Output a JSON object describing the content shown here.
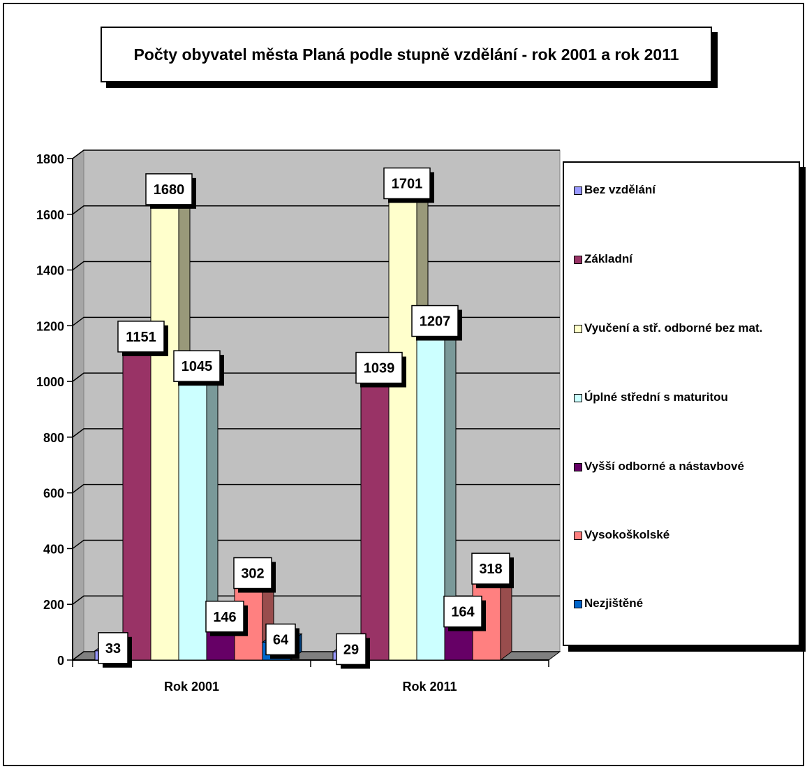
{
  "chart_data": {
    "type": "bar",
    "title": "Počty obyvatel města Planá podle stupně vzdělání - rok 2001 a rok 2011",
    "categories": [
      "Rok 2001",
      "Rok 2011"
    ],
    "ylim": [
      0,
      1800
    ],
    "yticks": [
      "0",
      "200",
      "400",
      "600",
      "800",
      "1000",
      "1200",
      "1400",
      "1600",
      "1800"
    ],
    "grid": true,
    "legend_position": "right",
    "series": [
      {
        "name": "Bez vzdělání",
        "color": "#9999ff",
        "values": [
          33,
          29
        ]
      },
      {
        "name": "Základní",
        "color": "#993366",
        "values": [
          1151,
          1039
        ]
      },
      {
        "name": "Vyučení a stř. odborné bez mat.",
        "color": "#ffffcc",
        "values": [
          1680,
          1701
        ]
      },
      {
        "name": "Úplné střední s maturitou",
        "color": "#ccffff",
        "values": [
          1045,
          1207
        ]
      },
      {
        "name": "Vyšší odborné a nástavbové",
        "color": "#660066",
        "values": [
          146,
          164
        ]
      },
      {
        "name": "Vysokoškolské",
        "color": "#ff8080",
        "values": [
          302,
          318
        ]
      },
      {
        "name": "Nezjištěné",
        "color": "#0066cc",
        "values": [
          64,
          null
        ]
      }
    ]
  }
}
